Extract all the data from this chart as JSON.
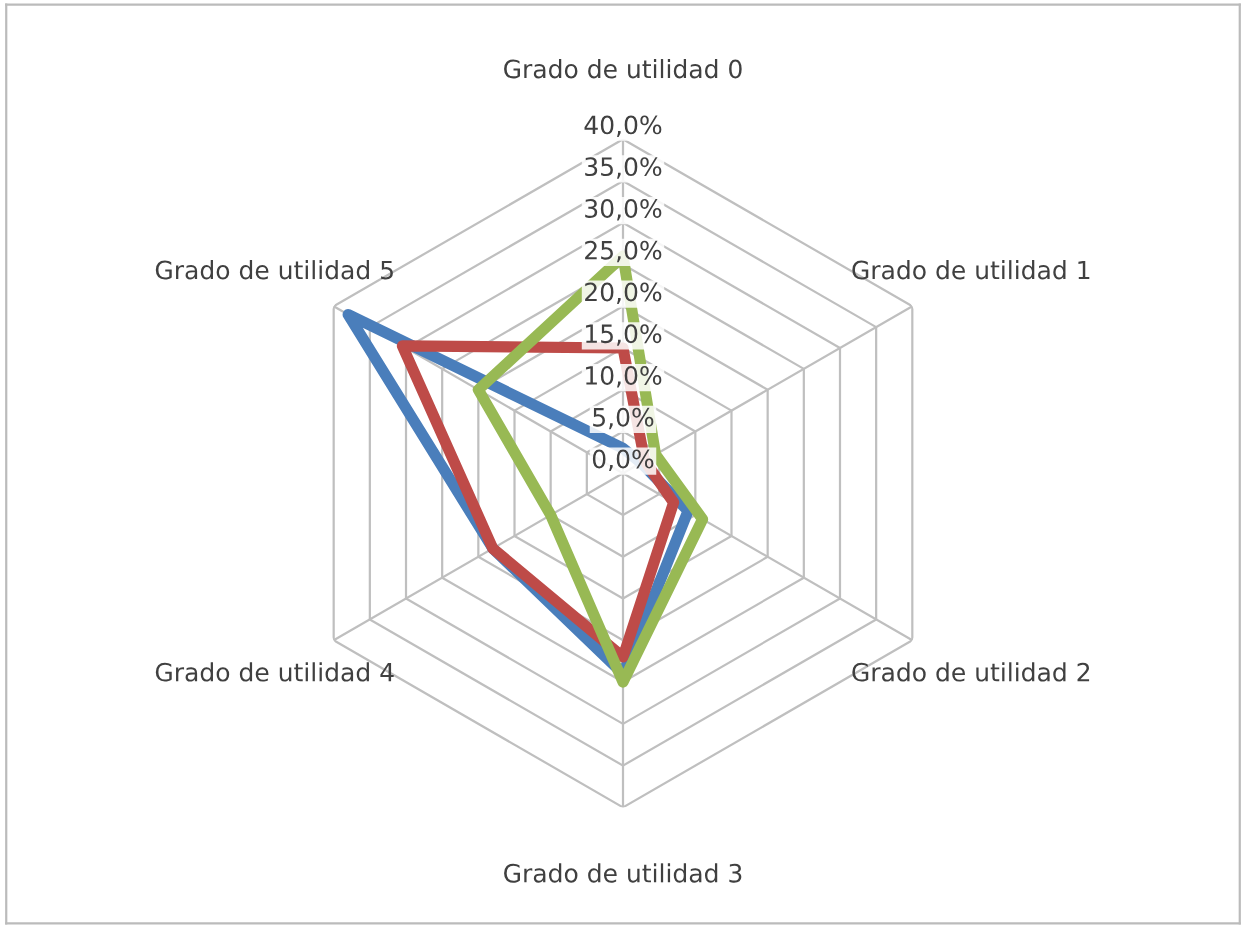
{
  "chart_data": {
    "type": "radar",
    "categories": [
      "Grado de utilidad 0",
      "Grado de utilidad 1",
      "Grado de utilidad 2",
      "Grado de utilidad 3",
      "Grado de utilidad 4",
      "Grado de utilidad 5"
    ],
    "series": [
      {
        "color": "#4a7ebb",
        "values": [
          3,
          2.5,
          9,
          24,
          18,
          38
        ]
      },
      {
        "color": "#be4b48",
        "values": [
          15,
          3,
          7,
          22,
          18,
          30.5
        ]
      },
      {
        "color": "#98b954",
        "values": [
          26,
          4.5,
          11,
          25,
          10,
          20
        ]
      }
    ],
    "ylim": [
      0,
      40
    ],
    "yticks": [
      {
        "value": 0,
        "label": "0,0%"
      },
      {
        "value": 5,
        "label": "5,0%"
      },
      {
        "value": 10,
        "label": "10,0%"
      },
      {
        "value": 15,
        "label": "15,0%"
      },
      {
        "value": 20,
        "label": "20,0%"
      },
      {
        "value": 25,
        "label": "25,0%"
      },
      {
        "value": 30,
        "label": "30,0%"
      },
      {
        "value": 35,
        "label": "35,0%"
      },
      {
        "value": 40,
        "label": "40,0%"
      }
    ],
    "grid": true,
    "marker": "none",
    "line_style": "solid"
  }
}
